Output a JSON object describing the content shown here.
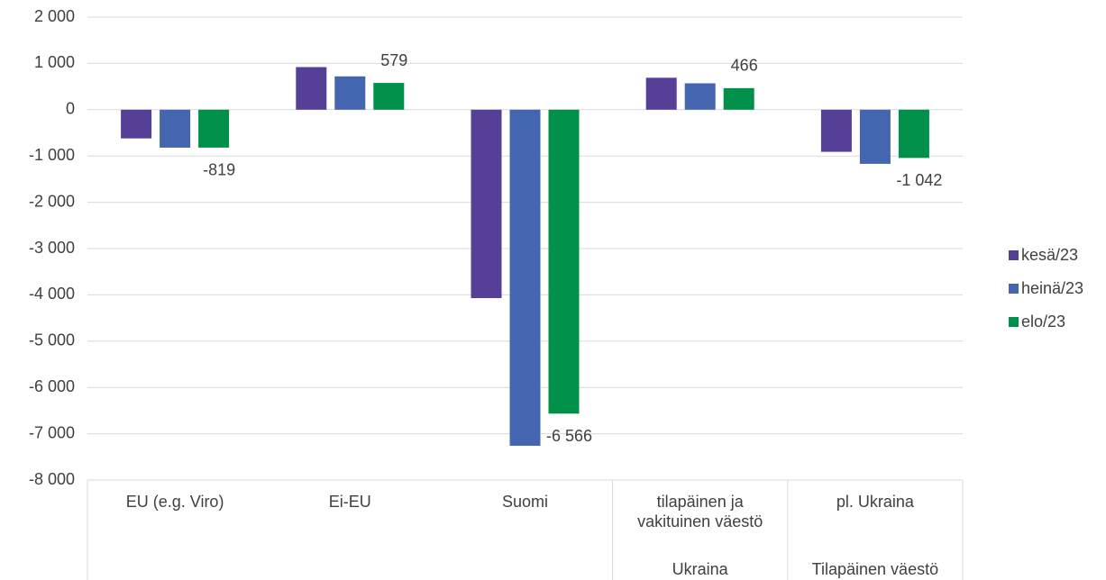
{
  "chart_data": {
    "type": "bar",
    "categories": [
      "EU (e.g. Viro)",
      "Ei-EU",
      "Suomi",
      "tilapäinen ja\nvakituinen väestö",
      "pl. Ukraina"
    ],
    "group_labels": [
      null,
      null,
      null,
      "Ukraina",
      "Tilapäinen väestö"
    ],
    "series": [
      {
        "name": "kesä/23",
        "color": "#553f97",
        "values": [
          -620,
          920,
          -4070,
          690,
          -910
        ]
      },
      {
        "name": "heinä/23",
        "color": "#4466b0",
        "values": [
          -820,
          720,
          -7260,
          570,
          -1170
        ]
      },
      {
        "name": "elo/23",
        "color": "#00904a",
        "values": [
          -819,
          579,
          -6566,
          466,
          -1042
        ],
        "value_labels": [
          "-819",
          "579",
          "-6 566",
          "466",
          "-1 042"
        ]
      }
    ],
    "ylim": [
      -8000,
      2000
    ],
    "yticks": [
      {
        "value": -8000,
        "label": "-8 000"
      },
      {
        "value": -7000,
        "label": "-7 000"
      },
      {
        "value": -6000,
        "label": "-6 000"
      },
      {
        "value": -5000,
        "label": "-5 000"
      },
      {
        "value": -4000,
        "label": "-4 000"
      },
      {
        "value": -3000,
        "label": "-3 000"
      },
      {
        "value": -2000,
        "label": "-2 000"
      },
      {
        "value": -1000,
        "label": "-1 000"
      },
      0,
      {
        "value": 1000,
        "label": "1 000"
      },
      {
        "value": 2000,
        "label": "2 000"
      }
    ],
    "grid": true,
    "legend": "right"
  }
}
